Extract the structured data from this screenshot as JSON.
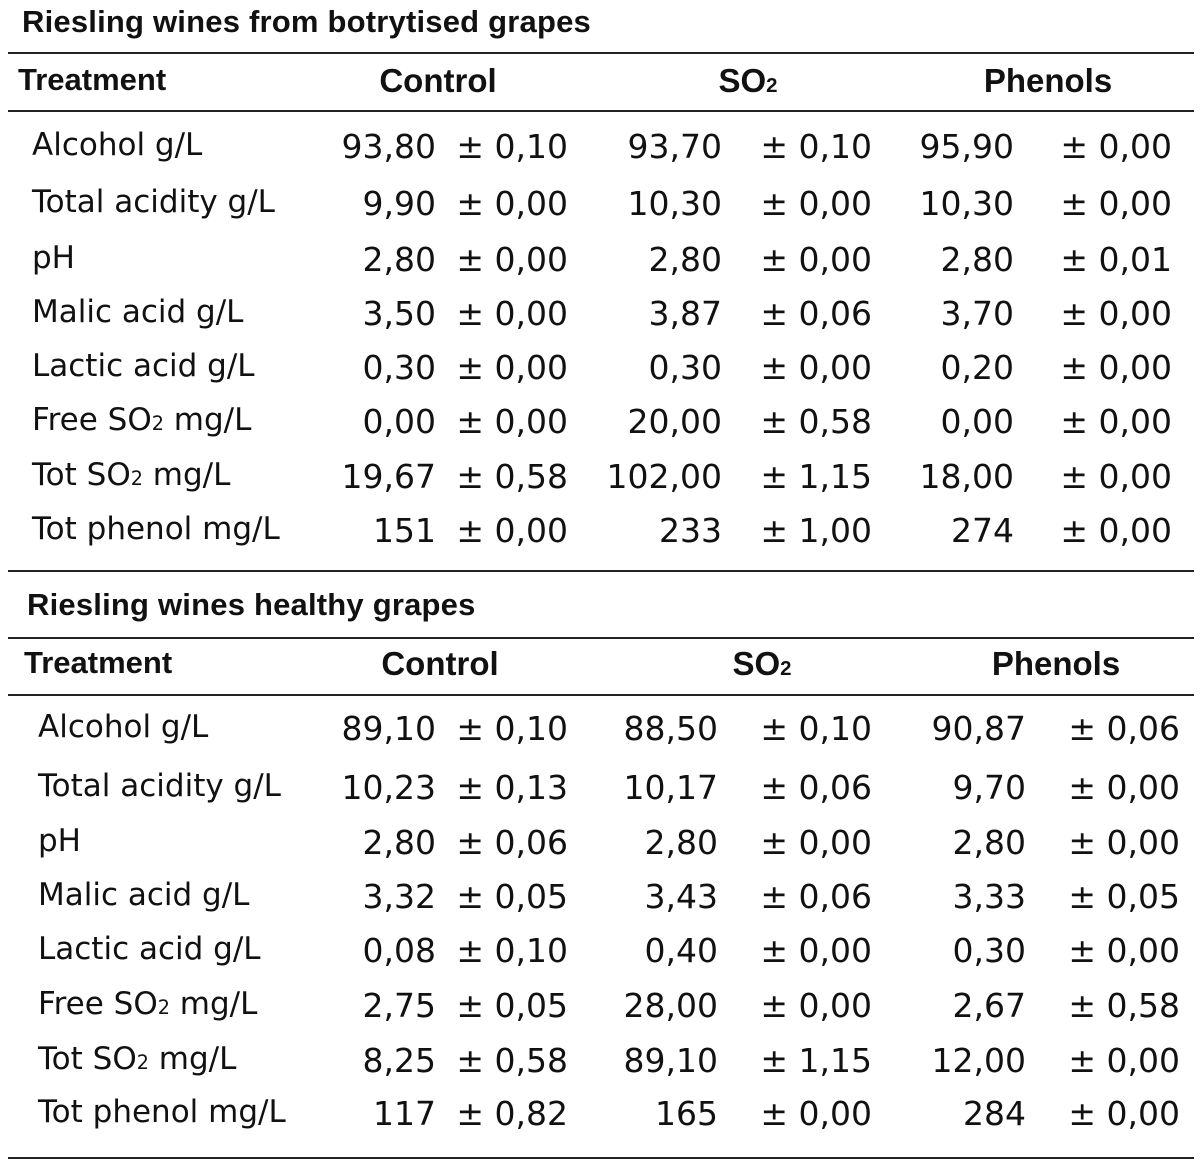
{
  "sections": [
    {
      "title": "Riesling wines from botrytised grapes",
      "headers": {
        "treatment": "Treatment",
        "control": "Control",
        "so2_main": "SO",
        "so2_sub": "2",
        "phenols": "Phenols"
      },
      "rows": [
        {
          "label": "Alcohol g/L",
          "label_pre": "Alcohol g/L",
          "label_sub": "",
          "label_post": "",
          "c_v": "93,80",
          "c_e": "± 0,10",
          "s_v": "93,70",
          "s_e": "± 0,10",
          "p_v": "95,90",
          "p_e": "± 0,00"
        },
        {
          "label": "Total acidity g/L",
          "label_pre": "Total acidity g/L",
          "label_sub": "",
          "label_post": "",
          "c_v": "9,90",
          "c_e": "± 0,00",
          "s_v": "10,30",
          "s_e": "± 0,00",
          "p_v": "10,30",
          "p_e": "± 0,00"
        },
        {
          "label": "pH",
          "label_pre": "pH",
          "label_sub": "",
          "label_post": "",
          "c_v": "2,80",
          "c_e": "± 0,00",
          "s_v": "2,80",
          "s_e": "± 0,00",
          "p_v": "2,80",
          "p_e": "± 0,01"
        },
        {
          "label": "Malic acid g/L",
          "label_pre": "Malic acid g/L",
          "label_sub": "",
          "label_post": "",
          "c_v": "3,50",
          "c_e": "± 0,00",
          "s_v": "3,87",
          "s_e": "± 0,06",
          "p_v": "3,70",
          "p_e": "± 0,00"
        },
        {
          "label": "Lactic acid g/L",
          "label_pre": "Lactic acid g/L",
          "label_sub": "",
          "label_post": "",
          "c_v": "0,30",
          "c_e": "± 0,00",
          "s_v": "0,30",
          "s_e": "± 0,00",
          "p_v": "0,20",
          "p_e": "± 0,00"
        },
        {
          "label": "Free SO2 mg/L",
          "label_pre": "Free SO",
          "label_sub": "2",
          "label_post": " mg/L",
          "c_v": "0,00",
          "c_e": "± 0,00",
          "s_v": "20,00",
          "s_e": "± 0,58",
          "p_v": "0,00",
          "p_e": "± 0,00"
        },
        {
          "label": "Tot SO2 mg/L",
          "label_pre": "Tot SO",
          "label_sub": "2",
          "label_post": " mg/L",
          "c_v": "19,67",
          "c_e": "± 0,58",
          "s_v": "102,00",
          "s_e": "± 1,15",
          "p_v": "18,00",
          "p_e": "± 0,00"
        },
        {
          "label": "Tot phenol mg/L",
          "label_pre": "Tot phenol mg/L",
          "label_sub": "",
          "label_post": "",
          "c_v": "151",
          "c_e": "± 0,00",
          "s_v": "233",
          "s_e": "± 1,00",
          "p_v": "274",
          "p_e": "± 0,00"
        }
      ]
    },
    {
      "title": "Riesling wines healthy grapes",
      "headers": {
        "treatment": "Treatment",
        "control": "Control",
        "so2_main": "SO",
        "so2_sub": "2",
        "phenols": "Phenols"
      },
      "rows": [
        {
          "label": "Alcohol g/L",
          "label_pre": "Alcohol g/L",
          "label_sub": "",
          "label_post": "",
          "c_v": "89,10",
          "c_e": "± 0,10",
          "s_v": "88,50",
          "s_e": "± 0,10",
          "p_v": "90,87",
          "p_e": "± 0,06"
        },
        {
          "label": "Total acidity g/L",
          "label_pre": "Total acidity g/L",
          "label_sub": "",
          "label_post": "",
          "c_v": "10,23",
          "c_e": "± 0,13",
          "s_v": "10,17",
          "s_e": "± 0,06",
          "p_v": "9,70",
          "p_e": "± 0,00"
        },
        {
          "label": "pH",
          "label_pre": "pH",
          "label_sub": "",
          "label_post": "",
          "c_v": "2,80",
          "c_e": "± 0,06",
          "s_v": "2,80",
          "s_e": "± 0,00",
          "p_v": "2,80",
          "p_e": "± 0,00"
        },
        {
          "label": "Malic acid g/L",
          "label_pre": "Malic acid g/L",
          "label_sub": "",
          "label_post": "",
          "c_v": "3,32",
          "c_e": "± 0,05",
          "s_v": "3,43",
          "s_e": "± 0,06",
          "p_v": "3,33",
          "p_e": "± 0,05"
        },
        {
          "label": "Lactic acid g/L",
          "label_pre": "Lactic acid g/L",
          "label_sub": "",
          "label_post": "",
          "c_v": "0,08",
          "c_e": "± 0,10",
          "s_v": "0,40",
          "s_e": "± 0,00",
          "p_v": "0,30",
          "p_e": "± 0,00"
        },
        {
          "label": "Free SO2 mg/L",
          "label_pre": "Free SO",
          "label_sub": "2",
          "label_post": " mg/L",
          "c_v": "2,75",
          "c_e": "± 0,05",
          "s_v": "28,00",
          "s_e": "± 0,00",
          "p_v": "2,67",
          "p_e": "± 0,58"
        },
        {
          "label": "Tot SO2 mg/L",
          "label_pre": "Tot SO",
          "label_sub": "2",
          "label_post": " mg/L",
          "c_v": "8,25",
          "c_e": "± 0,58",
          "s_v": "89,10",
          "s_e": "± 1,15",
          "p_v": "12,00",
          "p_e": "± 0,00"
        },
        {
          "label": "Tot phenol mg/L",
          "label_pre": "Tot phenol mg/L",
          "label_sub": "",
          "label_post": "",
          "c_v": "117",
          "c_e": "± 0,82",
          "s_v": "165",
          "s_e": "± 0,00",
          "p_v": "284",
          "p_e": "± 0,00"
        }
      ]
    }
  ]
}
